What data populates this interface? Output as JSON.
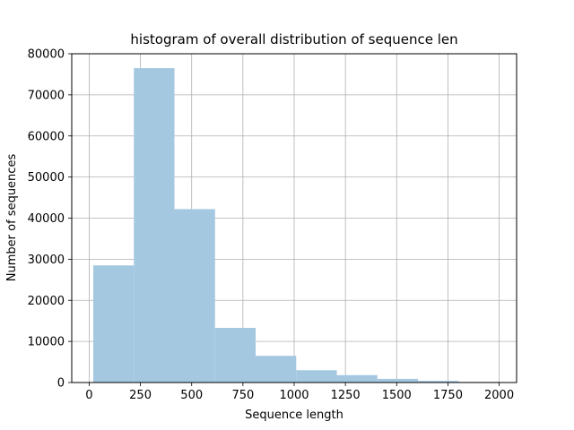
{
  "chart_data": {
    "type": "bar",
    "title": "histogram of overall distribution of sequence len",
    "xlabel": "Sequence length",
    "ylabel": "Number of sequences",
    "xlim": [
      -85,
      2085
    ],
    "ylim": [
      0,
      80000
    ],
    "grid": true,
    "x_ticks": [
      0,
      250,
      500,
      750,
      1000,
      1250,
      1500,
      1750,
      2000
    ],
    "y_ticks": [
      0,
      10000,
      20000,
      30000,
      40000,
      50000,
      60000,
      70000,
      80000
    ],
    "bins": [
      {
        "start": 20,
        "end": 218,
        "value": 28500
      },
      {
        "start": 218,
        "end": 416,
        "value": 76500
      },
      {
        "start": 416,
        "end": 614,
        "value": 42200
      },
      {
        "start": 614,
        "end": 812,
        "value": 13300
      },
      {
        "start": 812,
        "end": 1010,
        "value": 6500
      },
      {
        "start": 1010,
        "end": 1208,
        "value": 3000
      },
      {
        "start": 1208,
        "end": 1406,
        "value": 1800
      },
      {
        "start": 1406,
        "end": 1604,
        "value": 900
      },
      {
        "start": 1604,
        "end": 1802,
        "value": 400
      },
      {
        "start": 1802,
        "end": 2000,
        "value": 150
      }
    ],
    "colors": {
      "bar": "#a5c8e1",
      "grid": "#b0b0b0",
      "axis": "#000000"
    }
  }
}
